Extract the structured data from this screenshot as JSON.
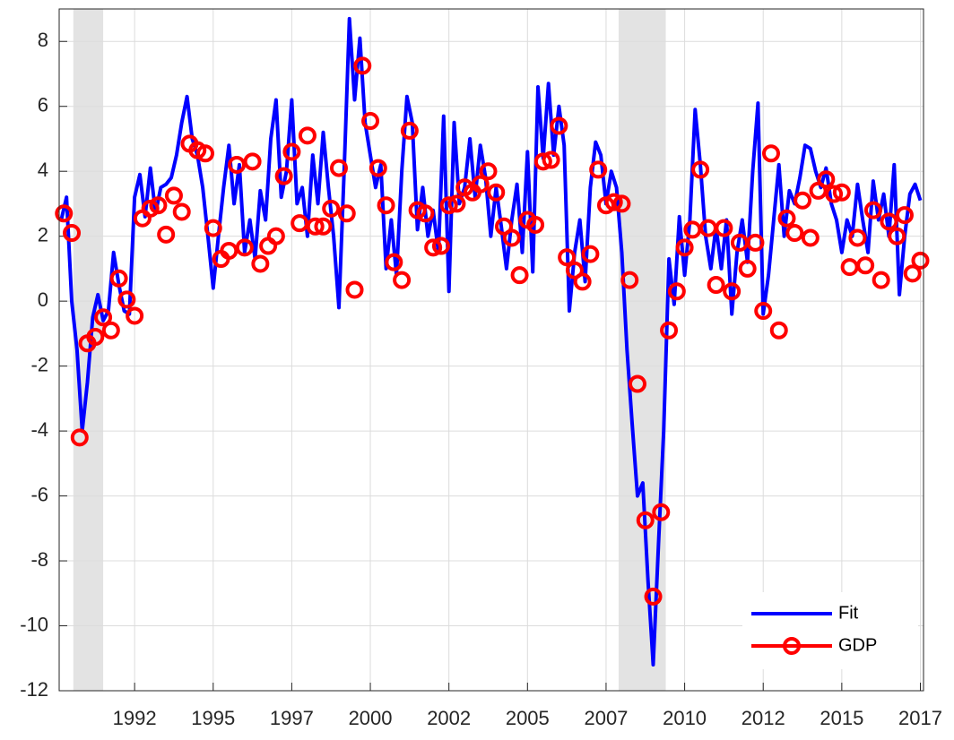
{
  "chart_data": {
    "type": "line",
    "xlim": [
      1990.1,
      2017.6
    ],
    "ylim": [
      -12,
      9
    ],
    "xticks": [
      {
        "value": 1992.5,
        "label": "1992"
      },
      1995,
      {
        "value": 1997.5,
        "label": "1997"
      },
      2000,
      {
        "value": 2002.5,
        "label": "2002"
      },
      2005,
      {
        "value": 2007.5,
        "label": "2007"
      },
      2010,
      {
        "value": 2012.5,
        "label": "2012"
      },
      2015,
      {
        "value": 2017.5,
        "label": "2017"
      }
    ],
    "yticks": [
      -12,
      -10,
      -8,
      -6,
      -4,
      -2,
      0,
      2,
      4,
      6,
      8
    ],
    "grid": true,
    "legend": "lower right",
    "shaded_periods": [
      [
        1990.55,
        1991.5
      ],
      [
        2007.9,
        2009.4
      ]
    ],
    "shade_color": "#e3e3e3",
    "series": [
      {
        "name": "Fit",
        "color": "#0000ff",
        "marker": "none",
        "x": [
          1990.167,
          1990.333,
          1990.5,
          1990.667,
          1990.833,
          1991,
          1991.167,
          1991.333,
          1991.5,
          1991.667,
          1991.833,
          1992,
          1992.167,
          1992.333,
          1992.5,
          1992.667,
          1992.833,
          1993,
          1993.167,
          1993.333,
          1993.5,
          1993.667,
          1993.833,
          1994,
          1994.167,
          1994.333,
          1994.5,
          1994.667,
          1994.833,
          1995,
          1995.167,
          1995.333,
          1995.5,
          1995.667,
          1995.833,
          1996,
          1996.167,
          1996.333,
          1996.5,
          1996.667,
          1996.833,
          1997,
          1997.167,
          1997.333,
          1997.5,
          1997.667,
          1997.833,
          1998,
          1998.167,
          1998.333,
          1998.5,
          1998.667,
          1998.833,
          1999,
          1999.167,
          1999.333,
          1999.5,
          1999.667,
          1999.833,
          2000,
          2000.167,
          2000.333,
          2000.5,
          2000.667,
          2000.833,
          2001,
          2001.167,
          2001.333,
          2001.5,
          2001.667,
          2001.833,
          2002,
          2002.167,
          2002.333,
          2002.5,
          2002.667,
          2002.833,
          2003,
          2003.167,
          2003.333,
          2003.5,
          2003.667,
          2003.833,
          2004,
          2004.167,
          2004.333,
          2004.5,
          2004.667,
          2004.833,
          2005,
          2005.167,
          2005.333,
          2005.5,
          2005.667,
          2005.833,
          2006,
          2006.167,
          2006.333,
          2006.5,
          2006.667,
          2006.833,
          2007,
          2007.167,
          2007.333,
          2007.5,
          2007.667,
          2007.833,
          2008,
          2008.167,
          2008.333,
          2008.5,
          2008.667,
          2008.833,
          2009,
          2009.167,
          2009.333,
          2009.5,
          2009.667,
          2009.833,
          2010,
          2010.167,
          2010.333,
          2010.5,
          2010.667,
          2010.833,
          2011,
          2011.167,
          2011.333,
          2011.5,
          2011.667,
          2011.833,
          2012,
          2012.167,
          2012.333,
          2012.5,
          2012.667,
          2012.833,
          2013,
          2013.167,
          2013.333,
          2013.5,
          2013.667,
          2013.833,
          2014,
          2014.167,
          2014.333,
          2014.5,
          2014.667,
          2014.833,
          2015,
          2015.167,
          2015.333,
          2015.5,
          2015.667,
          2015.833,
          2016,
          2016.167,
          2016.333,
          2016.5,
          2016.667,
          2016.833,
          2017,
          2017.167,
          2017.333,
          2017.5
        ],
        "values": [
          2.5,
          3.2,
          0,
          -1.5,
          -4.0,
          -2.5,
          -0.5,
          0.2,
          -0.6,
          -0.3,
          1.5,
          0.5,
          -0.3,
          -0.4,
          3.2,
          3.9,
          2.6,
          4.1,
          2.7,
          3.5,
          3.6,
          3.8,
          4.5,
          5.5,
          6.3,
          5.0,
          4.5,
          3.5,
          2.0,
          0.4,
          2.0,
          3.5,
          4.8,
          3.0,
          4.2,
          1.5,
          2.5,
          1.3,
          3.4,
          2.5,
          5.0,
          6.2,
          3.2,
          4.0,
          6.2,
          3.0,
          3.5,
          2.0,
          4.5,
          3.0,
          5.2,
          3.5,
          2.0,
          -0.2,
          4.0,
          8.7,
          6.2,
          8.1,
          5.5,
          4.5,
          3.5,
          4.2,
          1.0,
          2.5,
          0.8,
          4.0,
          6.3,
          5.5,
          2.2,
          3.5,
          2.0,
          2.8,
          1.5,
          5.7,
          0.3,
          5.5,
          3.0,
          3.5,
          5.0,
          3.2,
          4.8,
          3.8,
          2.0,
          3.5,
          2.3,
          1.0,
          2.5,
          3.6,
          1.5,
          4.6,
          0.9,
          6.6,
          4.4,
          6.7,
          4.5,
          6.0,
          4.8,
          -0.3,
          1.5,
          2.5,
          0.6,
          3.5,
          4.9,
          4.5,
          3.0,
          4.0,
          3.5,
          1.5,
          -1.5,
          -3.8,
          -6.0,
          -5.6,
          -8.6,
          -11.2,
          -7.5,
          -4.0,
          1.3,
          -0.1,
          2.6,
          0.8,
          2.5,
          5.9,
          4.2,
          2.0,
          1.0,
          2.3,
          1.0,
          2.5,
          -0.4,
          1.5,
          2.5,
          1.2,
          4.0,
          6.1,
          -0.4,
          0.8,
          2.5,
          4.2,
          2.0,
          3.4,
          3.0,
          3.8,
          4.8,
          4.7,
          4.0,
          3.5,
          4.1,
          3.0,
          2.5,
          1.5,
          2.5,
          2.0,
          3.6,
          2.5,
          1.5,
          3.7,
          2.5,
          3.3,
          2.0,
          4.2,
          0.2,
          2.0,
          3.3,
          3.6,
          3.1
        ]
      },
      {
        "name": "GDP",
        "color": "#ff0000",
        "marker": "o",
        "x": [
          1990.25,
          1990.5,
          1990.75,
          1991,
          1991.25,
          1991.5,
          1991.75,
          1992,
          1992.25,
          1992.5,
          1992.75,
          1993,
          1993.25,
          1993.5,
          1993.75,
          1994,
          1994.25,
          1994.5,
          1994.75,
          1995,
          1995.25,
          1995.5,
          1995.75,
          1996,
          1996.25,
          1996.5,
          1996.75,
          1997,
          1997.25,
          1997.5,
          1997.75,
          1998,
          1998.25,
          1998.5,
          1998.75,
          1999,
          1999.25,
          1999.5,
          1999.75,
          2000,
          2000.25,
          2000.5,
          2000.75,
          2001,
          2001.25,
          2001.5,
          2001.75,
          2002,
          2002.25,
          2002.5,
          2002.75,
          2003,
          2003.25,
          2003.5,
          2003.75,
          2004,
          2004.25,
          2004.5,
          2004.75,
          2005,
          2005.25,
          2005.5,
          2005.75,
          2006,
          2006.25,
          2006.5,
          2006.75,
          2007,
          2007.25,
          2007.5,
          2007.75,
          2008,
          2008.25,
          2008.5,
          2008.75,
          2009,
          2009.25,
          2009.5,
          2009.75,
          2010,
          2010.25,
          2010.5,
          2010.75,
          2011,
          2011.25,
          2011.5,
          2011.75,
          2012,
          2012.25,
          2012.5,
          2012.75,
          2013,
          2013.25,
          2013.5,
          2013.75,
          2014,
          2014.25,
          2014.5,
          2014.75,
          2015,
          2015.25,
          2015.5,
          2015.75,
          2016,
          2016.25,
          2016.5,
          2016.75,
          2017,
          2017.25,
          2017.5
        ],
        "values": [
          2.7,
          2.1,
          -4.2,
          -1.3,
          -1.1,
          -0.5,
          -0.9,
          0.7,
          0.05,
          -0.45,
          2.55,
          2.85,
          2.95,
          2.05,
          3.25,
          2.75,
          4.85,
          4.65,
          4.55,
          2.25,
          1.3,
          1.55,
          4.2,
          1.65,
          4.3,
          1.15,
          1.7,
          2.0,
          3.85,
          4.6,
          2.4,
          5.1,
          2.3,
          2.3,
          2.85,
          4.1,
          2.7,
          0.35,
          7.25,
          5.55,
          4.1,
          2.95,
          1.2,
          0.65,
          5.25,
          2.8,
          2.7,
          1.65,
          1.7,
          2.95,
          3.0,
          3.5,
          3.35,
          3.6,
          4.0,
          3.35,
          2.3,
          1.95,
          0.8,
          2.5,
          2.35,
          4.3,
          4.35,
          5.4,
          1.35,
          0.95,
          0.6,
          1.45,
          4.05,
          2.95,
          3.05,
          3.0,
          0.65,
          -2.55,
          -6.75,
          -9.1,
          -6.5,
          -0.9,
          0.3,
          1.65,
          2.2,
          4.05,
          2.25,
          0.5,
          2.25,
          0.3,
          1.8,
          1.0,
          1.8,
          -0.3,
          4.55,
          -0.9,
          2.55,
          2.1,
          3.1,
          1.95,
          3.4,
          3.75,
          3.3,
          3.35,
          1.05,
          1.95,
          1.1,
          2.8,
          0.65,
          2.45,
          2.0,
          2.65,
          0.85,
          1.25
        ]
      }
    ]
  }
}
